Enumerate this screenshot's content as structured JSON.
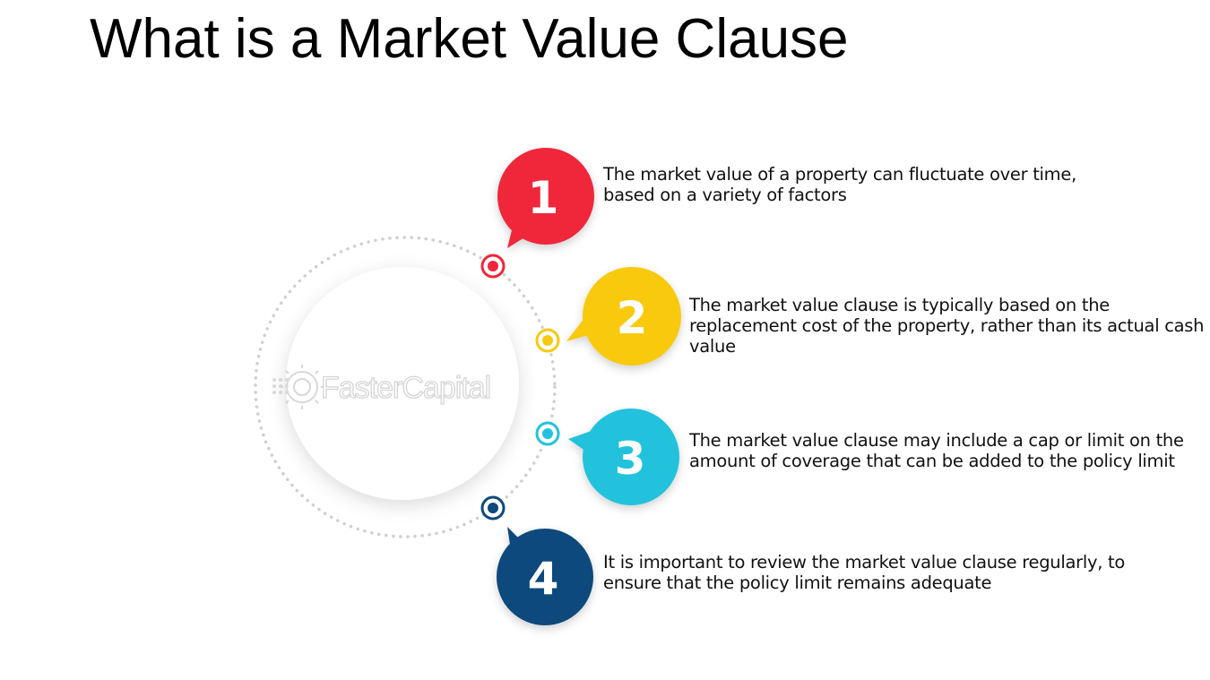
{
  "title": "What is a Market Value Clause",
  "watermark": "FasterCapital",
  "steps": [
    {
      "number": "1",
      "color": "#f0263a",
      "text_lines": [
        "The market value of a property can fluctuate over time,",
        "based on a variety of factors"
      ]
    },
    {
      "number": "2",
      "color": "#f9c90f",
      "text_lines": [
        "The market value clause is typically based on the",
        "replacement cost of the property, rather than its actual cash",
        "value"
      ]
    },
    {
      "number": "3",
      "color": "#22c2dd",
      "text_lines": [
        "The market value clause may include a cap or limit on the",
        "amount of coverage that can be added to the policy limit"
      ]
    },
    {
      "number": "4",
      "color": "#0f4a7c",
      "text_lines": [
        "It is important to review the market value clause regularly, to",
        "ensure that the policy limit remains adequate"
      ]
    }
  ]
}
